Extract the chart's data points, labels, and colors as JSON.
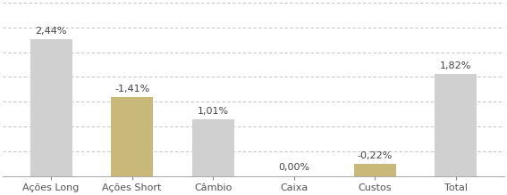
{
  "categories": [
    "Ações Long",
    "Ações Short",
    "Câmbio",
    "Caixa",
    "Custos",
    "Total"
  ],
  "values": [
    2.44,
    1.41,
    1.01,
    0.0,
    0.22,
    1.82
  ],
  "labels": [
    "2,44%",
    "-1,41%",
    "1,01%",
    "0,00%",
    "-0,22%",
    "1,82%"
  ],
  "bar_colors": [
    "#d0d0d0",
    "#c8b87a",
    "#d0d0d0",
    "#d0d0d0",
    "#c8b87a",
    "#d0d0d0"
  ],
  "label_offsets": [
    0.07,
    0.07,
    0.07,
    0.07,
    0.07,
    0.07
  ],
  "ylim": [
    0,
    3.1
  ],
  "background_color": "#ffffff",
  "grid_color": "#b8b8b8",
  "bar_width": 0.52,
  "label_fontsize": 8.0,
  "tick_fontsize": 8.0,
  "n_gridlines": 8
}
